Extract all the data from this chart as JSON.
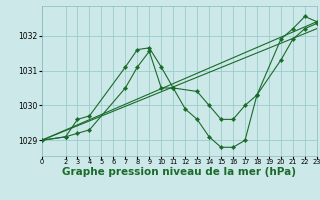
{
  "background_color": "#cce8e8",
  "grid_color": "#99cccc",
  "line_color": "#1a6b2a",
  "marker_color": "#1a6b2a",
  "xlabel": "Graphe pression niveau de la mer (hPa)",
  "xlabel_fontsize": 7.5,
  "xlim": [
    0,
    23
  ],
  "ylim": [
    1028.55,
    1032.85
  ],
  "yticks": [
    1029,
    1030,
    1031,
    1032
  ],
  "xticks": [
    0,
    2,
    3,
    4,
    5,
    6,
    7,
    8,
    9,
    10,
    11,
    12,
    13,
    14,
    15,
    16,
    17,
    18,
    19,
    20,
    21,
    22,
    23
  ],
  "series": [
    {
      "x": [
        0,
        2,
        3,
        4,
        7,
        8,
        9,
        10,
        11,
        12,
        13,
        14,
        15,
        16,
        17,
        18,
        20,
        21,
        22,
        23
      ],
      "y": [
        1029.0,
        1029.1,
        1029.6,
        1029.7,
        1031.1,
        1031.6,
        1031.65,
        1031.1,
        1030.5,
        1029.9,
        1029.6,
        1029.1,
        1028.8,
        1028.8,
        1029.0,
        1030.3,
        1031.9,
        1032.2,
        1032.55,
        1032.4
      ],
      "markers": true
    },
    {
      "x": [
        0,
        2,
        3,
        4,
        7,
        8,
        9,
        10,
        11,
        13,
        14,
        15,
        16,
        17,
        18,
        20,
        21,
        22,
        23
      ],
      "y": [
        1029.0,
        1029.1,
        1029.2,
        1029.3,
        1030.5,
        1031.1,
        1031.55,
        1030.5,
        1030.5,
        1030.4,
        1030.0,
        1029.6,
        1029.6,
        1030.0,
        1030.3,
        1031.3,
        1031.9,
        1032.2,
        1032.35
      ],
      "markers": true
    },
    {
      "x": [
        0,
        23
      ],
      "y": [
        1029.0,
        1032.4
      ],
      "markers": false
    },
    {
      "x": [
        0,
        23
      ],
      "y": [
        1029.0,
        1032.2
      ],
      "markers": false
    }
  ]
}
